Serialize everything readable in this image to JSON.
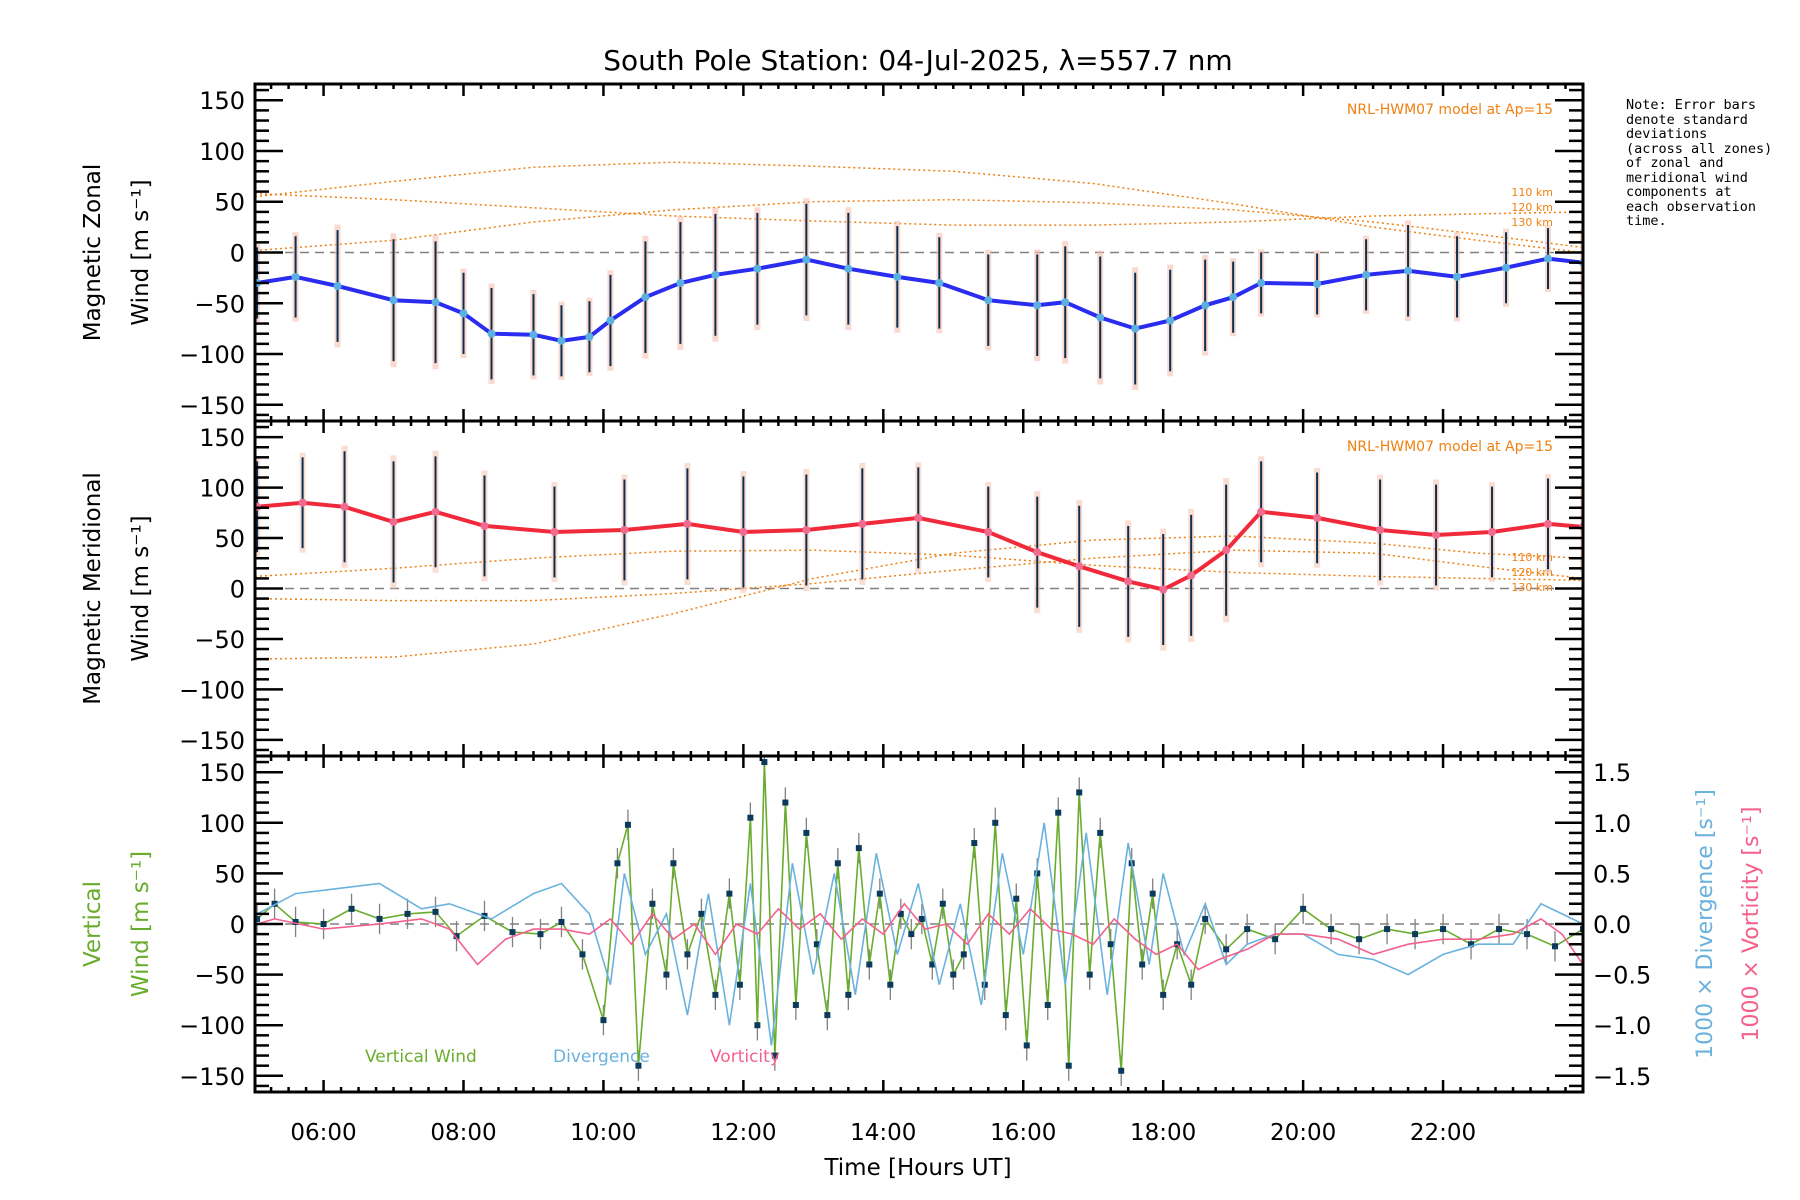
{
  "chart_data": {
    "type": "line",
    "title": "South Pole Station: 04-Jul-2025, λ=557.7 nm",
    "xlabel": "Time [Hours UT]",
    "xlim": [
      5.02,
      24.0
    ],
    "xticks": [
      {
        "value": 6,
        "label": "06:00"
      },
      {
        "value": 8,
        "label": "08:00"
      },
      {
        "value": 10,
        "label": "10:00"
      },
      {
        "value": 12,
        "label": "12:00"
      },
      {
        "value": 14,
        "label": "14:00"
      },
      {
        "value": 16,
        "label": "16:00"
      },
      {
        "value": 18,
        "label": "18:00"
      },
      {
        "value": 20,
        "label": "20:00"
      },
      {
        "value": 22,
        "label": "22:00"
      }
    ],
    "note": [
      "Note: Error bars",
      "denote standard",
      "deviations",
      "(across all zones)",
      "of zonal and",
      "meridional wind",
      "components at",
      "each observation",
      "time."
    ],
    "panels": [
      {
        "id": "zonal",
        "ylabel_line1": "Magnetic Zonal",
        "ylabel_line2": "Wind [m s⁻¹]",
        "ylim": [
          -166,
          166
        ],
        "yticks": [
          150,
          100,
          50,
          0,
          -50,
          -100,
          -150
        ],
        "model_label": "NRL-HWM07 model at Ap=15",
        "series": [
          {
            "name": "Zonal wind",
            "color": "#2a2cf0",
            "x": [
              5.05,
              5.6,
              6.2,
              7.0,
              7.6,
              8.0,
              8.4,
              9.0,
              9.4,
              9.8,
              10.1,
              10.6,
              11.1,
              11.6,
              12.2,
              12.9,
              13.5,
              14.2,
              14.8,
              15.5,
              16.2,
              16.6,
              17.1,
              17.6,
              18.1,
              18.6,
              19.0,
              19.4,
              20.2,
              20.9,
              21.5,
              22.2,
              22.9,
              23.5,
              24.0
            ],
            "y": [
              -30,
              -24,
              -33,
              -47,
              -49,
              -60,
              -80,
              -81,
              -87,
              -83,
              -67,
              -44,
              -30,
              -22,
              -16,
              -7,
              -16,
              -24,
              -30,
              -47,
              -52,
              -49,
              -64,
              -75,
              -67,
              -52,
              -44,
              -30,
              -31,
              -22,
              -18,
              -24,
              -15,
              -6,
              -10
            ],
            "errors": [
              35,
              40,
              55,
              60,
              60,
              40,
              45,
              40,
              35,
              35,
              45,
              55,
              60,
              60,
              55,
              55,
              55,
              50,
              45,
              45,
              50,
              55,
              60,
              55,
              50,
              45,
              35,
              30,
              30,
              35,
              45,
              40,
              35,
              30,
              30
            ]
          }
        ],
        "model_curves": [
          {
            "name": "110 km",
            "x": [
              5.02,
              7,
              9,
              11,
              13,
              15,
              17,
              19,
              21,
              22.5,
              24.0
            ],
            "y": [
              55,
              70,
              84,
              89,
              85,
              80,
              68,
              48,
              25,
              12,
              0
            ]
          },
          {
            "name": "120 km",
            "x": [
              5.02,
              7,
              9,
              11,
              13,
              15,
              17,
              19,
              21,
              22.5,
              24.0
            ],
            "y": [
              58,
              52,
              44,
              36,
              31,
              27,
              27,
              30,
              36,
              38,
              40
            ]
          },
          {
            "name": "130 km",
            "x": [
              5.02,
              7,
              9,
              11,
              13,
              15,
              17,
              19,
              21,
              22.5,
              24.0
            ],
            "y": [
              2,
              12,
              30,
              42,
              50,
              52,
              49,
              42,
              30,
              18,
              5
            ]
          }
        ]
      },
      {
        "id": "meridional",
        "ylabel_line1": "Magnetic Meridional",
        "ylabel_line2": "Wind [m s⁻¹]",
        "ylim": [
          -166,
          166
        ],
        "yticks": [
          150,
          100,
          50,
          0,
          -50,
          -100,
          -150
        ],
        "model_label": "NRL-HWM07 model at Ap=15",
        "series": [
          {
            "name": "Meridional wind",
            "color": "#f02a3a",
            "x": [
              5.05,
              5.7,
              6.3,
              7.0,
              7.6,
              8.3,
              9.3,
              10.3,
              11.2,
              12.0,
              12.9,
              13.7,
              14.5,
              15.5,
              16.2,
              16.8,
              17.5,
              18.0,
              18.4,
              18.9,
              19.4,
              20.2,
              21.1,
              21.9,
              22.7,
              23.5,
              24.0
            ],
            "y": [
              81,
              85,
              81,
              66,
              76,
              62,
              56,
              58,
              64,
              56,
              58,
              64,
              70,
              56,
              36,
              22,
              7,
              -1,
              13,
              38,
              76,
              70,
              58,
              53,
              56,
              64,
              61
            ],
            "errors": [
              45,
              45,
              55,
              60,
              55,
              50,
              45,
              50,
              55,
              55,
              55,
              55,
              50,
              45,
              55,
              60,
              55,
              55,
              60,
              65,
              50,
              45,
              50,
              50,
              45,
              45,
              40
            ]
          }
        ],
        "model_curves": [
          {
            "name": "110 km",
            "x": [
              5.02,
              7,
              9,
              11,
              13,
              15,
              17,
              19,
              21,
              22.5,
              24.0
            ],
            "y": [
              -70,
              -68,
              -55,
              -25,
              10,
              35,
              48,
              52,
              45,
              35,
              30
            ]
          },
          {
            "name": "120 km",
            "x": [
              5.02,
              7,
              9,
              11,
              13,
              15,
              17,
              19,
              21,
              22.5,
              24.0
            ],
            "y": [
              -10,
              -12,
              -12,
              -5,
              5,
              18,
              30,
              38,
              35,
              22,
              10
            ]
          },
          {
            "name": "130 km",
            "x": [
              5.02,
              7,
              9,
              11,
              13,
              15,
              17,
              19,
              21,
              22.5,
              24.0
            ],
            "y": [
              12,
              20,
              30,
              37,
              38,
              33,
              23,
              16,
              12,
              10,
              8
            ]
          }
        ]
      },
      {
        "id": "vertical",
        "ylabel_line1": "Vertical",
        "ylabel_line2": "Wind [m s⁻¹]",
        "ylim": [
          -166,
          166
        ],
        "yticks": [
          150,
          100,
          50,
          0,
          -50,
          -100,
          -150
        ],
        "y2lim": [
          -1.66,
          1.66
        ],
        "y2ticks": [
          "1.5",
          "1.0",
          "0.5",
          "0.0",
          "-0.5",
          "-1.0",
          "-1.5"
        ],
        "y2label_div": "1000 × Divergence [s⁻¹]",
        "y2label_vort": "1000 × Vorticity [s⁻¹]",
        "legend": [
          {
            "label": "Vertical Wind",
            "color": "#6aad2e"
          },
          {
            "label": "Divergence",
            "color": "#6ab2de"
          },
          {
            "label": "Vorticity",
            "color": "#f4608c"
          }
        ],
        "series": [
          {
            "name": "Vertical Wind",
            "color": "#6aad2e",
            "x": [
              5.05,
              5.3,
              5.6,
              6.0,
              6.4,
              6.8,
              7.2,
              7.6,
              7.9,
              8.3,
              8.7,
              9.1,
              9.4,
              9.7,
              10.0,
              10.2,
              10.35,
              10.5,
              10.7,
              10.9,
              11.0,
              11.2,
              11.4,
              11.6,
              11.8,
              11.95,
              12.1,
              12.2,
              12.3,
              12.45,
              12.6,
              12.75,
              12.9,
              13.05,
              13.2,
              13.35,
              13.5,
              13.65,
              13.8,
              13.95,
              14.1,
              14.25,
              14.4,
              14.55,
              14.7,
              14.85,
              15.0,
              15.15,
              15.3,
              15.45,
              15.6,
              15.75,
              15.9,
              16.05,
              16.2,
              16.35,
              16.5,
              16.65,
              16.8,
              16.95,
              17.1,
              17.25,
              17.4,
              17.55,
              17.7,
              17.85,
              18.0,
              18.2,
              18.4,
              18.6,
              18.9,
              19.2,
              19.6,
              20.0,
              20.4,
              20.8,
              21.2,
              21.6,
              22.0,
              22.4,
              22.8,
              23.2,
              23.6,
              24.0
            ],
            "y": [
              5,
              20,
              2,
              0,
              15,
              5,
              10,
              12,
              -12,
              8,
              -8,
              -10,
              2,
              -30,
              -95,
              60,
              98,
              -140,
              20,
              -50,
              60,
              -30,
              10,
              -70,
              30,
              -60,
              105,
              -100,
              160,
              -130,
              120,
              -80,
              90,
              -20,
              -90,
              60,
              -70,
              75,
              -40,
              30,
              -60,
              10,
              -10,
              5,
              -40,
              20,
              -50,
              -30,
              80,
              -60,
              100,
              -90,
              25,
              -120,
              50,
              -80,
              110,
              -140,
              130,
              -50,
              90,
              -20,
              -145,
              60,
              -40,
              30,
              -70,
              -20,
              -60,
              5,
              -25,
              -5,
              -15,
              15,
              -5,
              -15,
              -5,
              -10,
              -5,
              -20,
              -5,
              -10,
              -22,
              -5
            ],
            "errors": [
              15,
              15,
              15,
              15,
              15,
              15,
              15,
              15,
              15,
              15,
              15,
              15,
              15,
              15,
              15,
              15,
              15,
              15,
              15,
              15,
              15,
              15,
              15,
              15,
              15,
              15,
              15,
              15,
              15,
              15,
              15,
              15,
              15,
              15,
              15,
              15,
              15,
              15,
              15,
              15,
              15,
              15,
              15,
              15,
              15,
              15,
              15,
              15,
              15,
              15,
              15,
              15,
              15,
              15,
              15,
              15,
              15,
              15,
              15,
              15,
              15,
              15,
              15,
              15,
              15,
              15,
              15,
              15,
              15,
              15,
              15,
              15,
              15,
              15,
              15,
              15,
              15,
              15,
              15,
              15,
              15,
              15,
              15,
              15
            ]
          },
          {
            "name": "Divergence",
            "color": "#6ab2de",
            "axis": "right",
            "x": [
              5.05,
              5.6,
              6.2,
              6.8,
              7.4,
              7.8,
              8.4,
              9.0,
              9.4,
              9.8,
              10.1,
              10.3,
              10.6,
              10.9,
              11.2,
              11.5,
              11.8,
              12.1,
              12.4,
              12.7,
              13.0,
              13.3,
              13.6,
              13.9,
              14.2,
              14.5,
              14.8,
              15.1,
              15.4,
              15.7,
              16.0,
              16.3,
              16.6,
              16.9,
              17.2,
              17.5,
              17.8,
              18.0,
              18.3,
              18.6,
              18.9,
              19.2,
              19.6,
              20.0,
              20.5,
              21.0,
              21.5,
              22.0,
              22.5,
              23.0,
              23.4,
              23.7,
              24.0
            ],
            "y": [
              0.1,
              0.3,
              0.35,
              0.4,
              0.15,
              0.2,
              0.05,
              0.3,
              0.4,
              0.1,
              -0.6,
              0.5,
              -0.3,
              0.1,
              -0.9,
              0.3,
              -1.0,
              0.4,
              -1.2,
              0.6,
              -0.5,
              0.5,
              -0.7,
              0.7,
              -0.3,
              0.4,
              -0.6,
              0.2,
              -0.8,
              0.7,
              -0.3,
              1.0,
              -0.6,
              0.9,
              -0.7,
              0.8,
              -0.4,
              0.5,
              -0.3,
              0.2,
              -0.4,
              -0.2,
              -0.1,
              -0.1,
              -0.3,
              -0.35,
              -0.5,
              -0.3,
              -0.2,
              -0.2,
              0.2,
              0.1,
              0.0
            ]
          },
          {
            "name": "Vorticity",
            "color": "#f4608c",
            "axis": "right",
            "x": [
              5.05,
              5.3,
              6.0,
              6.8,
              7.4,
              7.8,
              8.2,
              8.6,
              9.0,
              9.4,
              9.8,
              10.1,
              10.4,
              10.7,
              11.0,
              11.3,
              11.6,
              11.9,
              12.2,
              12.5,
              12.8,
              13.1,
              13.4,
              13.7,
              14.0,
              14.3,
              14.6,
              14.9,
              15.2,
              15.5,
              15.8,
              16.1,
              16.4,
              16.7,
              17.0,
              17.3,
              17.6,
              17.9,
              18.2,
              18.5,
              18.8,
              19.2,
              19.6,
              20.0,
              20.5,
              21.0,
              21.5,
              22.0,
              22.5,
              23.0,
              23.4,
              23.7,
              24.0
            ],
            "y": [
              0.0,
              0.05,
              -0.05,
              0.0,
              0.05,
              -0.05,
              -0.4,
              -0.15,
              -0.05,
              -0.05,
              -0.1,
              0.05,
              -0.2,
              0.1,
              -0.15,
              0.0,
              -0.3,
              0.0,
              -0.1,
              0.15,
              -0.05,
              0.1,
              -0.15,
              0.05,
              -0.1,
              0.2,
              -0.05,
              0.0,
              -0.2,
              0.1,
              -0.1,
              0.15,
              -0.05,
              -0.1,
              -0.2,
              0.05,
              -0.15,
              -0.3,
              -0.2,
              -0.45,
              -0.35,
              -0.25,
              -0.1,
              -0.1,
              -0.15,
              -0.3,
              -0.2,
              -0.15,
              -0.15,
              -0.1,
              0.05,
              -0.1,
              -0.4
            ]
          }
        ]
      }
    ]
  }
}
